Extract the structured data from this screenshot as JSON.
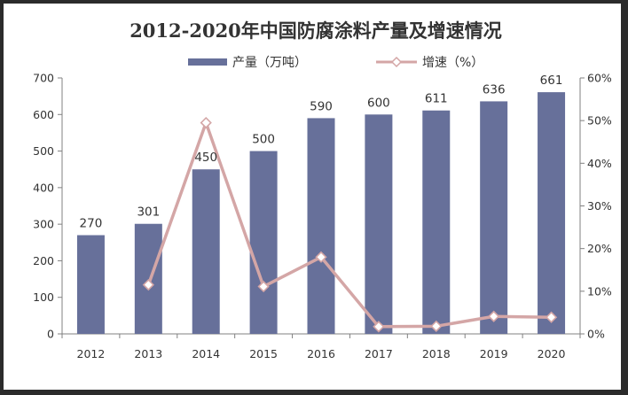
{
  "chart_data": {
    "type": "bar+line",
    "title": "2012-2020年中国防腐涂料产量及增速情况",
    "categories": [
      "2012",
      "2013",
      "2014",
      "2015",
      "2016",
      "2017",
      "2018",
      "2019",
      "2020"
    ],
    "series": [
      {
        "name": "产量（万吨）",
        "type": "bar",
        "axis": "left",
        "values": [
          270,
          301,
          450,
          500,
          590,
          600,
          611,
          636,
          661
        ]
      },
      {
        "name": "增速（%）",
        "type": "line",
        "axis": "right",
        "values": [
          null,
          11.5,
          49.5,
          11.1,
          18.0,
          1.7,
          1.8,
          4.1,
          3.9
        ]
      }
    ],
    "ylim_left": [
      0,
      700
    ],
    "yticks_left": [
      0,
      100,
      200,
      300,
      400,
      500,
      600,
      700
    ],
    "ylim_right": [
      0,
      60
    ],
    "yticks_right": [
      "0%",
      "10%",
      "20%",
      "30%",
      "40%",
      "50%",
      "60%"
    ],
    "legend_position": "top",
    "grid": false,
    "colors": {
      "bar": "#67709a",
      "line": "#d4a6a6",
      "marker_fill": "#ffffff",
      "axis": "#808080"
    }
  }
}
